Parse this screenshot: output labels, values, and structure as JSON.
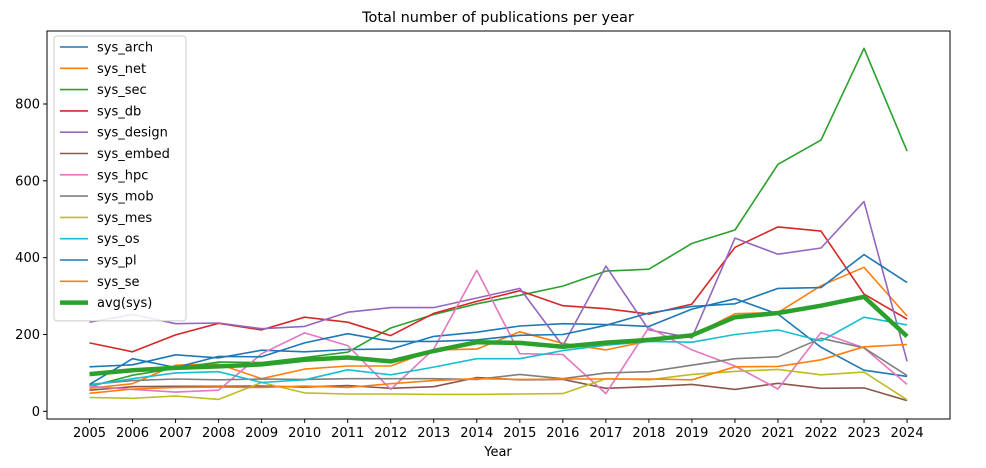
{
  "chart_data": {
    "type": "line",
    "title": "Total number of publications per year",
    "xlabel": "Year",
    "ylabel": "",
    "ylim": [
      -20,
      990
    ],
    "yticks": [
      0,
      200,
      400,
      600,
      800
    ],
    "grid": false,
    "legend_position": "top-left",
    "x": [
      "2005",
      "2006",
      "2007",
      "2008",
      "2009",
      "2010",
      "2011",
      "2012",
      "2013",
      "2014",
      "2015",
      "2016",
      "2017",
      "2018",
      "2019",
      "2020",
      "2021",
      "2022",
      "2023",
      "2024"
    ],
    "series": [
      {
        "name": "sys_arch",
        "color": "#1f77b4",
        "values": [
          116,
          121,
          147,
          139,
          159,
          155,
          161,
          162,
          195,
          206,
          222,
          228,
          226,
          221,
          266,
          293,
          253,
          167,
          107,
          91
        ]
      },
      {
        "name": "sys_net",
        "color": "#ff7f0e",
        "values": [
          60,
          72,
          120,
          123,
          85,
          110,
          118,
          118,
          160,
          162,
          207,
          177,
          160,
          183,
          197,
          254,
          257,
          327,
          375,
          248
        ]
      },
      {
        "name": "sys_sec",
        "color": "#2ca02c",
        "values": [
          64,
          94,
          112,
          128,
          127,
          140,
          154,
          217,
          252,
          280,
          302,
          326,
          365,
          370,
          437,
          472,
          643,
          706,
          945,
          677
        ]
      },
      {
        "name": "sys_db",
        "color": "#d62728",
        "values": [
          178,
          155,
          199,
          229,
          212,
          245,
          232,
          197,
          255,
          286,
          314,
          275,
          267,
          253,
          279,
          427,
          480,
          469,
          305,
          240
        ]
      },
      {
        "name": "sys_design",
        "color": "#9467bd",
        "values": [
          232,
          252,
          228,
          230,
          215,
          221,
          258,
          270,
          270,
          295,
          320,
          170,
          378,
          212,
          191,
          451,
          409,
          425,
          546,
          130
        ]
      },
      {
        "name": "sys_embed",
        "color": "#8c564b",
        "values": [
          55,
          64,
          65,
          65,
          66,
          63,
          67,
          60,
          64,
          88,
          82,
          83,
          60,
          64,
          70,
          57,
          73,
          60,
          61,
          28
        ]
      },
      {
        "name": "sys_hpc",
        "color": "#e377c2",
        "values": [
          65,
          57,
          50,
          55,
          150,
          204,
          171,
          57,
          162,
          367,
          150,
          148,
          46,
          218,
          160,
          118,
          58,
          205,
          165,
          70
        ]
      },
      {
        "name": "sys_mob",
        "color": "#7f7f7f",
        "values": [
          70,
          80,
          84,
          82,
          84,
          83,
          85,
          85,
          85,
          83,
          96,
          85,
          100,
          103,
          120,
          137,
          142,
          190,
          165,
          93
        ]
      },
      {
        "name": "sys_mes",
        "color": "#bcbd22",
        "values": [
          36,
          34,
          40,
          31,
          75,
          48,
          45,
          45,
          44,
          44,
          45,
          46,
          85,
          82,
          96,
          104,
          109,
          95,
          102,
          30
        ]
      },
      {
        "name": "sys_os",
        "color": "#17becf",
        "values": [
          68,
          85,
          100,
          103,
          75,
          82,
          108,
          95,
          115,
          137,
          137,
          158,
          172,
          182,
          180,
          200,
          212,
          183,
          245,
          225
        ]
      },
      {
        "name": "sys_pl",
        "color": "#1f77b4",
        "values": [
          70,
          137,
          114,
          143,
          142,
          178,
          202,
          182,
          182,
          186,
          198,
          200,
          224,
          256,
          273,
          280,
          320,
          322,
          408,
          335
        ]
      },
      {
        "name": "sys_se",
        "color": "#ff7f0e",
        "values": [
          47,
          58,
          62,
          63,
          62,
          66,
          62,
          72,
          80,
          85,
          83,
          84,
          84,
          84,
          82,
          116,
          117,
          134,
          168,
          174
        ]
      },
      {
        "name": "avg(sys)",
        "color": "#2ca02c",
        "thick": true,
        "values": [
          97,
          107,
          113,
          117,
          122,
          134,
          140,
          130,
          157,
          180,
          178,
          168,
          179,
          186,
          198,
          245,
          256,
          275,
          298,
          195
        ]
      }
    ]
  }
}
